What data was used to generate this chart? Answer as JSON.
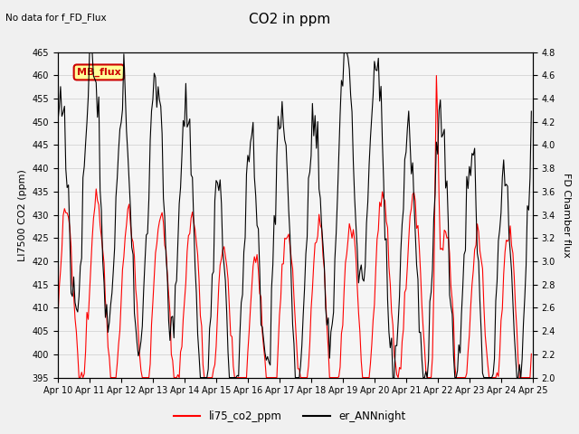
{
  "title": "CO2 in ppm",
  "no_data_text": "No data for f_FD_Flux",
  "ylabel_left": "LI7500 CO2 (ppm)",
  "ylabel_right": "FD Chamber flux",
  "ylim_left": [
    395,
    465
  ],
  "ylim_right": [
    2.0,
    4.8
  ],
  "xlim": [
    0,
    360
  ],
  "xtick_labels": [
    "Apr 10",
    "Apr 11",
    "Apr 12",
    "Apr 13",
    "Apr 14",
    "Apr 15",
    "Apr 16",
    "Apr 17",
    "Apr 18",
    "Apr 19",
    "Apr 20",
    "Apr 21",
    "Apr 22",
    "Apr 23",
    "Apr 24",
    "Apr 25"
  ],
  "xtick_positions": [
    0,
    24,
    48,
    72,
    96,
    120,
    144,
    168,
    192,
    216,
    240,
    264,
    288,
    312,
    336,
    360
  ],
  "legend_label_red": "li75_co2_ppm",
  "legend_label_black": "er_ANNnight",
  "mb_flux_box_color": "#FFFF99",
  "mb_flux_box_edge": "#CC0000",
  "line_red": "#FF0000",
  "line_black": "#000000",
  "bg_color": "#f0f0f0",
  "plot_bg": "#f5f5f5",
  "title_fontsize": 11,
  "axis_fontsize": 8,
  "tick_fontsize": 7
}
